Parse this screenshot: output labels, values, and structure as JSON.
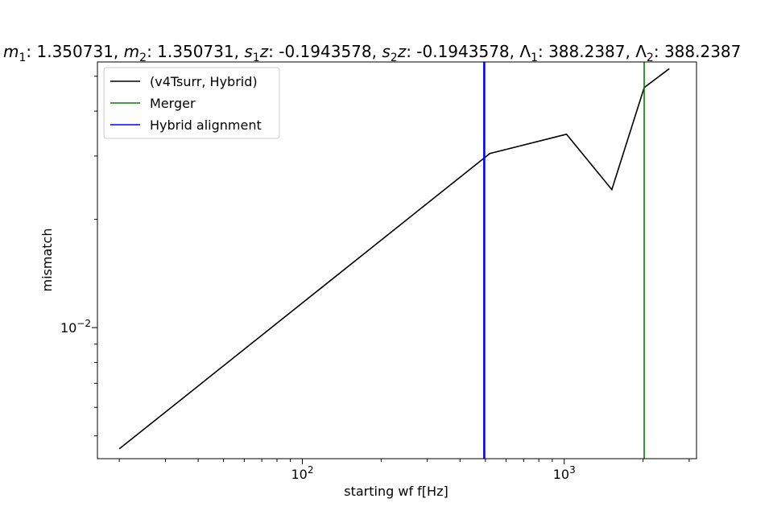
{
  "chart_data": {
    "type": "line",
    "title": {
      "m1_label": "m",
      "m1_sub": "1",
      "m1_value": ": 1.350731, ",
      "m2_label": "m",
      "m2_sub": "2",
      "m2_value": ": 1.350731, ",
      "s1_label": "s",
      "s1_sub": "1",
      "s1_z": "z",
      "s1_value": ": -0.1943578, ",
      "s2_label": "s",
      "s2_sub": "2",
      "s2_z": "z",
      "s2_value": ": -0.1943578, ",
      "l1_label": "Λ",
      "l1_sub": "1",
      "l1_value": ": 388.2387, ",
      "l2_label": "Λ",
      "l2_sub": "2",
      "l2_value": ": 388.2387"
    },
    "xlabel": "starting wf f[Hz]",
    "ylabel": "mismatch",
    "xscale": "log",
    "yscale": "log",
    "xlim": [
      16.5,
      3200
    ],
    "ylim": [
      0.00432,
      0.0548
    ],
    "x_ticks": [
      {
        "base": "10",
        "exp": "2",
        "value": 100
      },
      {
        "base": "10",
        "exp": "3",
        "value": 1000
      }
    ],
    "y_ticks": [
      {
        "base": "10",
        "exp": "−2",
        "value": 0.01
      }
    ],
    "grid": false,
    "legend_position": "upper left",
    "series": [
      {
        "name": "(v4Tsurr, Hybrid)",
        "color": "#000000",
        "x": [
          20,
          520,
          1020,
          1520,
          2020,
          2520
        ],
        "y": [
          0.0046,
          0.0305,
          0.0345,
          0.0242,
          0.0465,
          0.0525
        ]
      }
    ],
    "vlines": [
      {
        "name": "Merger",
        "color": "#008000",
        "x": 2020
      },
      {
        "name": "Hybrid alignment",
        "color": "#0000ff",
        "x": 495
      }
    ]
  }
}
